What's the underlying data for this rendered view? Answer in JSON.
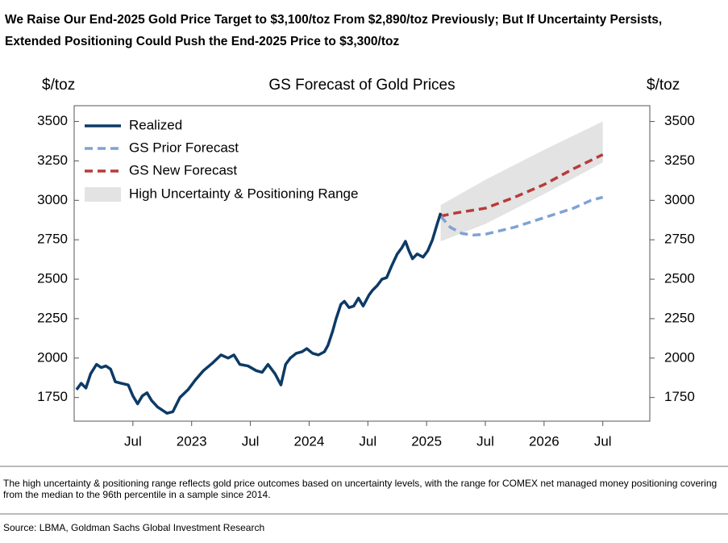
{
  "chart_data": {
    "type": "line",
    "title": "We Raise Our End-2025 Gold Price Target to $3,100/toz From $2,890/toz Previously; But If Uncertainty Persists, Extended Positioning Could Push the End-2025 Price to $3,300/toz",
    "subtitle": "GS Forecast of Gold Prices",
    "y_label": "$/toz",
    "y2_label": "$/toz",
    "footnote": "The high uncertainty & positioning range reflects gold price outcomes based on uncertainty levels, with the range for COMEX net managed money positioning covering from the median to the 96th percentile in a sample since 2014.",
    "source": "Source: LBMA, Goldman Sachs Global Investment Research",
    "xlim": [
      2022.0,
      2026.9
    ],
    "xticks": [
      {
        "value": 2022.5,
        "label": "Jul"
      },
      {
        "value": 2023,
        "label": "2023"
      },
      {
        "value": 2023.5,
        "label": "Jul"
      },
      {
        "value": 2024,
        "label": "2024"
      },
      {
        "value": 2024.5,
        "label": "Jul"
      },
      {
        "value": 2025,
        "label": "2025"
      },
      {
        "value": 2025.5,
        "label": "Jul"
      },
      {
        "value": 2026,
        "label": "2026"
      },
      {
        "value": 2026.5,
        "label": "Jul"
      }
    ],
    "ylim": [
      1600,
      3600
    ],
    "yticks": [
      1750,
      2000,
      2250,
      2500,
      2750,
      3000,
      3250,
      3500
    ],
    "y2lim": [
      1600,
      3600
    ],
    "y2ticks": [
      1750,
      2000,
      2250,
      2500,
      2750,
      3000,
      3250,
      3500
    ],
    "legend": "upper-left",
    "series": [
      {
        "name": "Realized",
        "color": "#0d3a66",
        "style": "solid",
        "x": [
          2022.02,
          2022.06,
          2022.1,
          2022.14,
          2022.19,
          2022.23,
          2022.27,
          2022.31,
          2022.35,
          2022.4,
          2022.46,
          2022.5,
          2022.54,
          2022.58,
          2022.62,
          2022.66,
          2022.71,
          2022.75,
          2022.79,
          2022.84,
          2022.9,
          2022.97,
          2023.03,
          2023.1,
          2023.18,
          2023.25,
          2023.31,
          2023.36,
          2023.41,
          2023.48,
          2023.55,
          2023.6,
          2023.65,
          2023.71,
          2023.76,
          2023.8,
          2023.84,
          2023.89,
          2023.94,
          2023.98,
          2024.03,
          2024.08,
          2024.13,
          2024.16,
          2024.2,
          2024.23,
          2024.27,
          2024.3,
          2024.34,
          2024.38,
          2024.42,
          2024.46,
          2024.51,
          2024.54,
          2024.58,
          2024.62,
          2024.66,
          2024.7,
          2024.75,
          2024.79,
          2024.82,
          2024.85,
          2024.88,
          2024.92,
          2024.97,
          2025.01,
          2025.05,
          2025.09,
          2025.12
        ],
        "values": [
          1800,
          1840,
          1810,
          1900,
          1960,
          1940,
          1950,
          1930,
          1850,
          1840,
          1830,
          1760,
          1710,
          1760,
          1780,
          1730,
          1690,
          1670,
          1650,
          1660,
          1750,
          1800,
          1860,
          1920,
          1970,
          2020,
          2000,
          2020,
          1960,
          1950,
          1920,
          1910,
          1960,
          1900,
          1830,
          1960,
          2000,
          2030,
          2040,
          2060,
          2030,
          2020,
          2040,
          2080,
          2170,
          2250,
          2340,
          2360,
          2320,
          2330,
          2380,
          2330,
          2400,
          2430,
          2460,
          2500,
          2510,
          2580,
          2660,
          2700,
          2740,
          2680,
          2630,
          2660,
          2640,
          2680,
          2750,
          2850,
          2920
        ]
      },
      {
        "name": "GS Prior Forecast",
        "color": "#7fa2d4",
        "style": "dashed",
        "x": [
          2025.12,
          2025.2,
          2025.3,
          2025.4,
          2025.5,
          2025.75,
          2026.0,
          2026.25,
          2026.4,
          2026.5
        ],
        "values": [
          2900,
          2830,
          2790,
          2780,
          2785,
          2830,
          2890,
          2950,
          3000,
          3020
        ]
      },
      {
        "name": "GS New Forecast",
        "color": "#b83a3a",
        "style": "dashed",
        "x": [
          2025.12,
          2025.25,
          2025.5,
          2025.75,
          2026.0,
          2026.25,
          2026.5
        ],
        "values": [
          2900,
          2920,
          2950,
          3020,
          3100,
          3200,
          3290
        ]
      }
    ],
    "band": {
      "name": "High Uncertainty & Positioning Range",
      "color": "#e3e3e3",
      "x": [
        2025.12,
        2025.5,
        2026.0,
        2026.5
      ],
      "low": [
        2740,
        2850,
        3040,
        3240
      ],
      "high": [
        2970,
        3130,
        3320,
        3500
      ]
    }
  }
}
